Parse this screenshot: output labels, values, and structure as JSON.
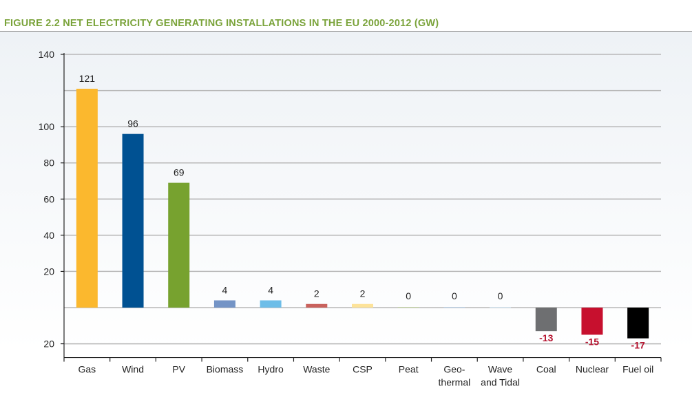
{
  "figure_title": "FIGURE 2.2 NET ELECTRICITY GENERATING INSTALLATIONS IN THE EU 2000-2012 (GW)",
  "chart_data": {
    "type": "bar",
    "title": "FIGURE 2.2 NET ELECTRICITY GENERATING INSTALLATIONS IN THE EU 2000-2012 (GW)",
    "xlabel": "",
    "ylabel": "",
    "ylim": [
      -20,
      140
    ],
    "y_ticks": [
      {
        "value": 140,
        "label": "140"
      },
      {
        "value": 100,
        "label": "100"
      },
      {
        "value": 80,
        "label": "80"
      },
      {
        "value": 60,
        "label": "60"
      },
      {
        "value": 40,
        "label": "40"
      },
      {
        "value": 20,
        "label": "20"
      },
      {
        "value": -20,
        "label": "20"
      }
    ],
    "gridlines": [
      140,
      120,
      100,
      80,
      60,
      40,
      20,
      0,
      -20
    ],
    "categories": [
      "Gas",
      "Wind",
      "PV",
      "Biomass",
      "Hydro",
      "Waste",
      "CSP",
      "Peat",
      "Geo-\nthermal",
      "Wave\nand Tidal",
      "Coal",
      "Nuclear",
      "Fuel oil"
    ],
    "values": [
      121,
      96,
      69,
      4,
      4,
      2,
      2,
      0,
      0,
      0,
      -13,
      -15,
      -17
    ],
    "value_labels": [
      "121",
      "96",
      "69",
      "4",
      "4",
      "2",
      "2",
      "0",
      "0",
      "0",
      "-13",
      "-15",
      "-17"
    ],
    "colors": [
      "#fbb82e",
      "#005192",
      "#77a22f",
      "#7494c6",
      "#6dbde8",
      "#c9625d",
      "#fde39a",
      "#c4d4a6",
      "#bcd1e6",
      "#d5e6f2",
      "#6e6f71",
      "#c7102e",
      "#000000"
    ],
    "negative_label_color": "#b5122e",
    "positive_label_color": "#222222"
  }
}
